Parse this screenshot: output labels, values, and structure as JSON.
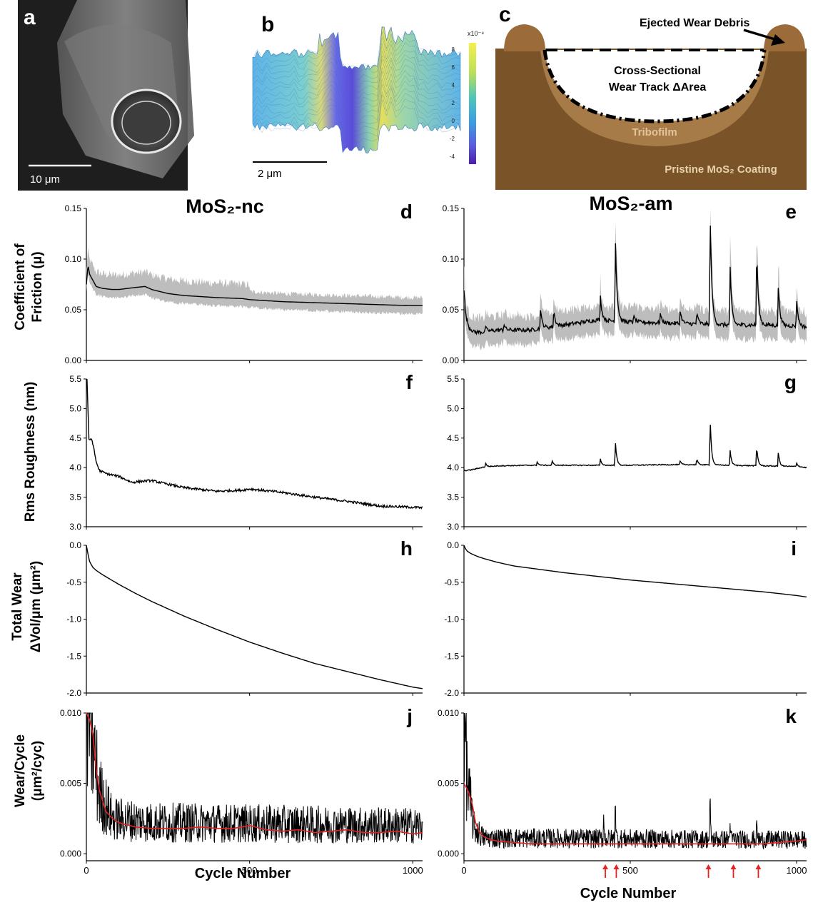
{
  "panel_letters": {
    "a": "a",
    "b": "b",
    "c": "c"
  },
  "panel_a": {
    "scale_label": "10 μm"
  },
  "panel_b": {
    "scale_label": "2 μm",
    "colorbar_exponent": "x10⁻⁸",
    "colorbar_ticks": [
      "8",
      "6",
      "4",
      "2",
      "0",
      "-2",
      "-4"
    ]
  },
  "panel_c": {
    "ejected": "Ejected Wear Debris",
    "cross1": "Cross-Sectional",
    "cross2": "Wear Track ΔArea",
    "tribofilm": "Tribofilm",
    "pristine": "Pristine MoS₂ Coating"
  },
  "columns": {
    "left": "MoS₂-nc",
    "right": "MoS₂-am"
  },
  "row_labels": [
    [
      "Coefficient of",
      "Friction (μ)"
    ],
    [
      "Rms Roughness (nm)"
    ],
    [
      "Total Wear",
      "ΔVol/μm (μm²)"
    ],
    [
      "Wear/Cycle",
      "(μm²/cyc)"
    ]
  ],
  "xlabel": "Cycle Number",
  "x_ticks": [
    "0",
    "500",
    "1000"
  ],
  "colors": {
    "main": "#000000",
    "band": "#bdbdbd",
    "avg": "#e32222",
    "arrow": "#e32222",
    "brown": "#7a5328",
    "light_brown": "#9b6c3a",
    "film": "#a77b48"
  },
  "chart_data": [
    {
      "id": "d",
      "letter": "d",
      "type": "line",
      "title": "MoS₂-nc",
      "xlim": [
        0,
        1030
      ],
      "ylim": [
        0,
        0.15
      ],
      "y_ticks": [
        "0.00",
        "0.05",
        "0.10",
        "0.15"
      ],
      "y_tick_values": [
        0,
        0.05,
        0.1,
        0.15
      ],
      "band": true,
      "band_width": 0.008,
      "series": [
        {
          "x": [
            0,
            5,
            10,
            20,
            30,
            50,
            80,
            100,
            150,
            180,
            200,
            250,
            300,
            400,
            480,
            500,
            600,
            700,
            800,
            900,
            1000,
            1030
          ],
          "y": [
            0.075,
            0.094,
            0.085,
            0.079,
            0.073,
            0.071,
            0.07,
            0.07,
            0.072,
            0.073,
            0.07,
            0.066,
            0.064,
            0.062,
            0.061,
            0.06,
            0.058,
            0.057,
            0.056,
            0.055,
            0.054,
            0.054
          ]
        }
      ]
    },
    {
      "id": "e",
      "letter": "e",
      "type": "line",
      "title": "MoS₂-am",
      "xlim": [
        0,
        1030
      ],
      "ylim": [
        0,
        0.15
      ],
      "y_ticks": [
        "0.00",
        "0.05",
        "0.10",
        "0.15"
      ],
      "y_tick_values": [
        0,
        0.05,
        0.1,
        0.15
      ],
      "band": true,
      "band_width": 0.014,
      "series": [
        {
          "x": [
            0,
            5,
            15,
            30,
            60,
            100,
            200,
            300,
            400,
            500,
            600,
            700,
            800,
            900,
            1000,
            1030
          ],
          "y": [
            0.07,
            0.045,
            0.033,
            0.028,
            0.028,
            0.03,
            0.03,
            0.035,
            0.04,
            0.038,
            0.037,
            0.036,
            0.035,
            0.035,
            0.034,
            0.033
          ]
        }
      ],
      "spikes": [
        {
          "x": 65,
          "y": 0.034
        },
        {
          "x": 120,
          "y": 0.036
        },
        {
          "x": 230,
          "y": 0.052
        },
        {
          "x": 270,
          "y": 0.05
        },
        {
          "x": 410,
          "y": 0.064
        },
        {
          "x": 455,
          "y": 0.125
        },
        {
          "x": 510,
          "y": 0.045
        },
        {
          "x": 590,
          "y": 0.047
        },
        {
          "x": 650,
          "y": 0.05
        },
        {
          "x": 700,
          "y": 0.048
        },
        {
          "x": 740,
          "y": 0.15
        },
        {
          "x": 800,
          "y": 0.095
        },
        {
          "x": 880,
          "y": 0.112
        },
        {
          "x": 945,
          "y": 0.075
        },
        {
          "x": 1000,
          "y": 0.06
        }
      ]
    },
    {
      "id": "f",
      "letter": "f",
      "type": "line",
      "xlim": [
        0,
        1030
      ],
      "ylim": [
        3.0,
        5.5
      ],
      "y_ticks": [
        "3.0",
        "3.5",
        "4.0",
        "4.5",
        "5.0",
        "5.5"
      ],
      "y_tick_values": [
        3.0,
        3.5,
        4.0,
        4.5,
        5.0,
        5.5
      ],
      "noise": 0.02,
      "series": [
        {
          "x": [
            0,
            2,
            8,
            15,
            20,
            25,
            30,
            40,
            60,
            100,
            140,
            170,
            200,
            250,
            300,
            400,
            480,
            500,
            600,
            700,
            800,
            900,
            1000,
            1030
          ],
          "y": [
            5.5,
            5.5,
            4.45,
            4.5,
            4.4,
            4.25,
            4.1,
            3.95,
            3.9,
            3.85,
            3.75,
            3.77,
            3.78,
            3.72,
            3.66,
            3.6,
            3.62,
            3.64,
            3.58,
            3.5,
            3.43,
            3.35,
            3.33,
            3.32
          ]
        }
      ]
    },
    {
      "id": "g",
      "letter": "g",
      "type": "line",
      "xlim": [
        0,
        1030
      ],
      "ylim": [
        3.0,
        5.5
      ],
      "y_ticks": [
        "3.0",
        "3.5",
        "4.0",
        "4.5",
        "5.0",
        "5.5"
      ],
      "y_tick_values": [
        3.0,
        3.5,
        4.0,
        4.5,
        5.0,
        5.5
      ],
      "noise": 0.008,
      "series": [
        {
          "x": [
            0,
            20,
            60,
            100,
            200,
            300,
            400,
            500,
            600,
            700,
            800,
            900,
            1000,
            1030
          ],
          "y": [
            3.95,
            3.96,
            4.01,
            4.03,
            4.04,
            4.04,
            4.04,
            4.04,
            4.05,
            4.05,
            4.04,
            4.03,
            4.02,
            4.0
          ]
        }
      ],
      "spikes": [
        {
          "x": 65,
          "y": 4.08
        },
        {
          "x": 220,
          "y": 4.1
        },
        {
          "x": 265,
          "y": 4.12
        },
        {
          "x": 410,
          "y": 4.15
        },
        {
          "x": 455,
          "y": 4.47
        },
        {
          "x": 650,
          "y": 4.12
        },
        {
          "x": 700,
          "y": 4.15
        },
        {
          "x": 740,
          "y": 4.88
        },
        {
          "x": 800,
          "y": 4.31
        },
        {
          "x": 880,
          "y": 4.37
        },
        {
          "x": 945,
          "y": 4.27
        },
        {
          "x": 1000,
          "y": 4.08
        }
      ]
    },
    {
      "id": "h",
      "letter": "h",
      "type": "line",
      "xlim": [
        0,
        1030
      ],
      "ylim": [
        -2.0,
        0.0
      ],
      "y_ticks": [
        "0.0",
        "-0.5",
        "-1.0",
        "-1.5",
        "-2.0"
      ],
      "y_tick_values": [
        0,
        -0.5,
        -1.0,
        -1.5,
        -2.0
      ],
      "series": [
        {
          "x": [
            0,
            5,
            10,
            20,
            30,
            50,
            100,
            150,
            200,
            300,
            400,
            500,
            600,
            700,
            800,
            900,
            1000,
            1030
          ],
          "y": [
            0,
            -0.12,
            -0.22,
            -0.3,
            -0.34,
            -0.4,
            -0.53,
            -0.65,
            -0.76,
            -0.96,
            -1.14,
            -1.31,
            -1.46,
            -1.6,
            -1.71,
            -1.82,
            -1.92,
            -1.94
          ]
        }
      ]
    },
    {
      "id": "i",
      "letter": "i",
      "type": "line",
      "xlim": [
        0,
        1030
      ],
      "ylim": [
        -2.0,
        0.0
      ],
      "y_ticks": [
        "0.0",
        "-0.5",
        "-1.0",
        "-1.5",
        "-2.0"
      ],
      "y_tick_values": [
        0,
        -0.5,
        -1.0,
        -1.5,
        -2.0
      ],
      "series": [
        {
          "x": [
            0,
            5,
            10,
            20,
            40,
            60,
            100,
            150,
            200,
            300,
            400,
            500,
            600,
            700,
            800,
            900,
            1000,
            1030
          ],
          "y": [
            0,
            -0.05,
            -0.08,
            -0.11,
            -0.15,
            -0.18,
            -0.23,
            -0.28,
            -0.31,
            -0.37,
            -0.42,
            -0.47,
            -0.51,
            -0.55,
            -0.59,
            -0.63,
            -0.68,
            -0.7
          ]
        }
      ]
    },
    {
      "id": "j",
      "letter": "j",
      "type": "line",
      "xlim": [
        0,
        1030
      ],
      "ylim": [
        -0.0005,
        0.01
      ],
      "y_ticks": [
        "0.000",
        "0.005",
        "0.010"
      ],
      "y_tick_values": [
        0,
        0.005,
        0.01
      ],
      "noise_style": "wear",
      "noise_base": [
        {
          "x": 0,
          "y": 0.01
        },
        {
          "x": 20,
          "y": 0.006
        },
        {
          "x": 40,
          "y": 0.0035
        },
        {
          "x": 80,
          "y": 0.002
        },
        {
          "x": 200,
          "y": 0.0018
        },
        {
          "x": 1030,
          "y": 0.0016
        }
      ],
      "series": [
        {
          "name": "",
          "x": [
            0,
            10,
            20,
            30,
            40,
            60,
            80,
            100,
            150,
            200,
            250,
            300,
            350,
            400,
            450,
            500,
            550,
            600,
            650,
            700,
            750,
            800,
            850,
            900,
            950,
            1000,
            1030
          ],
          "y": [
            0.011,
            0.0095,
            0.0085,
            0.006,
            0.0045,
            0.003,
            0.0025,
            0.0022,
            0.0019,
            0.0018,
            0.0018,
            0.0018,
            0.0019,
            0.0018,
            0.0018,
            0.002,
            0.0017,
            0.0016,
            0.0017,
            0.0015,
            0.0016,
            0.0017,
            0.0015,
            0.0015,
            0.0016,
            0.0014,
            0.0015
          ],
          "color": "red"
        }
      ]
    },
    {
      "id": "k",
      "letter": "k",
      "type": "line",
      "xlim": [
        0,
        1030
      ],
      "ylim": [
        -0.0005,
        0.01
      ],
      "y_ticks": [
        "0.000",
        "0.005",
        "0.010"
      ],
      "y_tick_values": [
        0,
        0.005,
        0.01
      ],
      "noise_style": "wear",
      "noise_base": [
        {
          "x": 0,
          "y": 0.01
        },
        {
          "x": 10,
          "y": 0.004
        },
        {
          "x": 30,
          "y": 0.0015
        },
        {
          "x": 60,
          "y": 0.0009
        },
        {
          "x": 1030,
          "y": 0.0008
        }
      ],
      "series": [
        {
          "name": "",
          "x": [
            0,
            5,
            15,
            25,
            35,
            45,
            60,
            80,
            100,
            200,
            300,
            400,
            500,
            600,
            700,
            800,
            900,
            1000,
            1030
          ],
          "y": [
            0.005,
            0.0048,
            0.0043,
            0.0035,
            0.0022,
            0.0016,
            0.0012,
            0.001,
            0.0009,
            0.0007,
            0.0007,
            0.0007,
            0.0007,
            0.0007,
            0.0007,
            0.0007,
            0.0007,
            0.0009,
            0.001
          ],
          "color": "red"
        }
      ],
      "spikes": [
        {
          "x": 420,
          "y": 0.0028
        },
        {
          "x": 455,
          "y": 0.0046
        },
        {
          "x": 740,
          "y": 0.005
        },
        {
          "x": 800,
          "y": 0.0022
        },
        {
          "x": 880,
          "y": 0.0025
        }
      ],
      "arrows_x": [
        425,
        458,
        735,
        810,
        885
      ]
    }
  ]
}
